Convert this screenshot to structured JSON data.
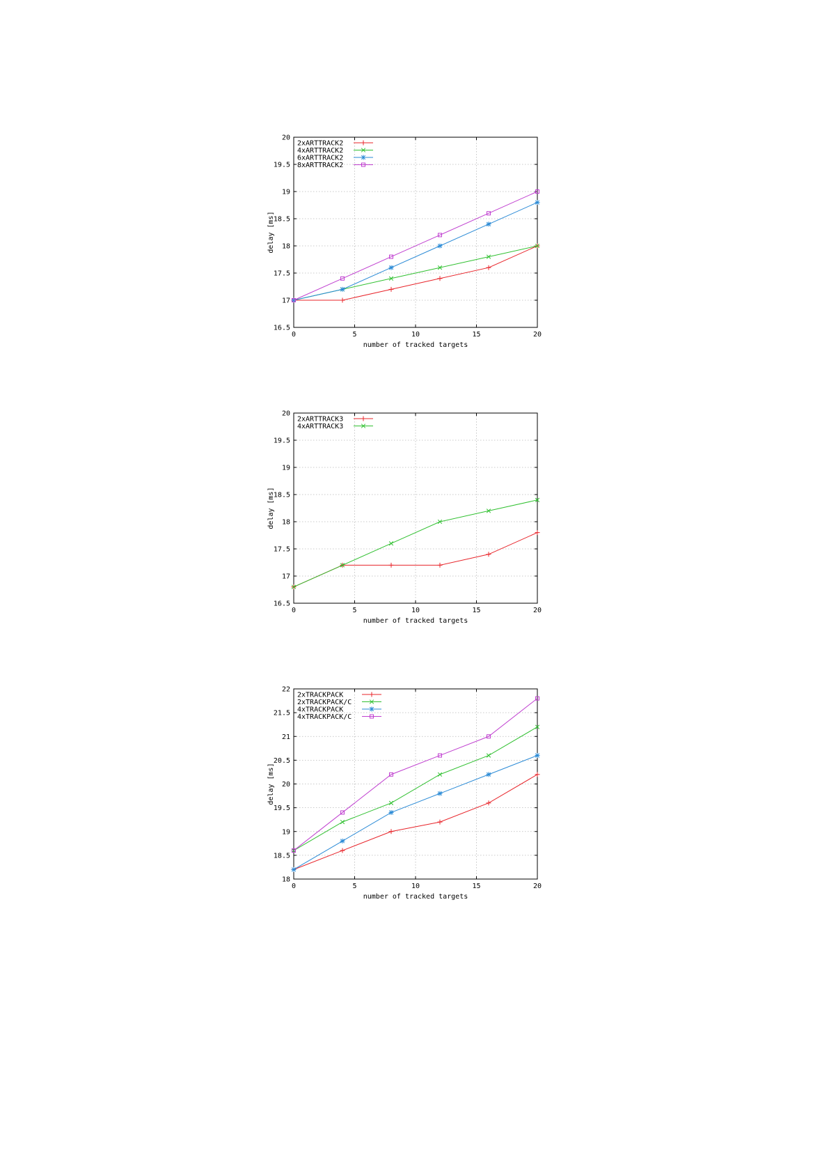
{
  "chart_data": [
    {
      "type": "line",
      "xlabel": "number of tracked targets",
      "ylabel": "delay [ms]",
      "xlim": [
        0,
        20
      ],
      "ylim": [
        16.5,
        20
      ],
      "xticks": [
        "0",
        "5",
        "10",
        "15",
        "20"
      ],
      "yticks": [
        "16.5",
        "17",
        "17.5",
        "18",
        "18.5",
        "19",
        "19.5",
        "20"
      ],
      "grid": true,
      "legend": "top-left",
      "x": [
        0,
        4,
        8,
        12,
        16,
        20
      ],
      "series": [
        {
          "name": "2xARTTRACK2",
          "color": "#e8242a",
          "marker": "plus",
          "values": [
            17.0,
            17.0,
            17.2,
            17.4,
            17.6,
            18.0
          ]
        },
        {
          "name": "4xARTTRACK2",
          "color": "#30c030",
          "marker": "cross",
          "values": [
            17.0,
            17.2,
            17.4,
            17.6,
            17.8,
            18.0
          ]
        },
        {
          "name": "6xARTTRACK2",
          "color": "#2a8ad6",
          "marker": "star",
          "values": [
            17.0,
            17.2,
            17.6,
            18.0,
            18.4,
            18.8
          ]
        },
        {
          "name": "8xARTTRACK2",
          "color": "#c040d0",
          "marker": "square",
          "values": [
            17.0,
            17.4,
            17.8,
            18.2,
            18.6,
            19.0
          ]
        }
      ]
    },
    {
      "type": "line",
      "xlabel": "number of tracked targets",
      "ylabel": "delay [ms]",
      "xlim": [
        0,
        20
      ],
      "ylim": [
        16.5,
        20
      ],
      "xticks": [
        "0",
        "5",
        "10",
        "15",
        "20"
      ],
      "yticks": [
        "16.5",
        "17",
        "17.5",
        "18",
        "18.5",
        "19",
        "19.5",
        "20"
      ],
      "grid": true,
      "legend": "top-left",
      "x": [
        0,
        4,
        8,
        12,
        16,
        20
      ],
      "series": [
        {
          "name": "2xARTTRACK3",
          "color": "#e8242a",
          "marker": "plus",
          "values": [
            16.8,
            17.2,
            17.2,
            17.2,
            17.4,
            17.8
          ]
        },
        {
          "name": "4xARTTRACK3",
          "color": "#30c030",
          "marker": "cross",
          "values": [
            16.8,
            17.2,
            17.6,
            18.0,
            18.2,
            18.4
          ]
        }
      ]
    },
    {
      "type": "line",
      "xlabel": "number of tracked targets",
      "ylabel": "delay [ms]",
      "xlim": [
        0,
        20
      ],
      "ylim": [
        18,
        22
      ],
      "xticks": [
        "0",
        "5",
        "10",
        "15",
        "20"
      ],
      "yticks": [
        "18",
        "18.5",
        "19",
        "19.5",
        "20",
        "20.5",
        "21",
        "21.5",
        "22"
      ],
      "grid": true,
      "legend": "top-left",
      "x": [
        0,
        4,
        8,
        12,
        16,
        20
      ],
      "series": [
        {
          "name": "2xTRACKPACK",
          "color": "#e8242a",
          "marker": "plus",
          "values": [
            18.2,
            18.6,
            19.0,
            19.2,
            19.6,
            20.2
          ]
        },
        {
          "name": "2xTRACKPACK/C",
          "color": "#30c030",
          "marker": "cross",
          "values": [
            18.6,
            19.2,
            19.6,
            20.2,
            20.6,
            21.2
          ]
        },
        {
          "name": "4xTRACKPACK",
          "color": "#2a8ad6",
          "marker": "star",
          "values": [
            18.2,
            18.8,
            19.4,
            19.8,
            20.2,
            20.6
          ]
        },
        {
          "name": "4xTRACKPACK/C",
          "color": "#c040d0",
          "marker": "square",
          "values": [
            18.6,
            19.4,
            20.2,
            20.6,
            21.0,
            21.8
          ]
        }
      ]
    }
  ]
}
